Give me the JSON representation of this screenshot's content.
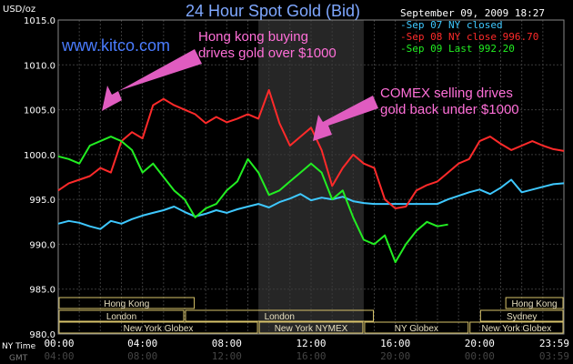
{
  "header": {
    "title": "24 Hour Spot Gold (Bid)",
    "timestamp": "September 09, 2009 18:27",
    "site": "www.kitco.com"
  },
  "legend": [
    {
      "label": "-Sep 07 NY closed",
      "color": "#3ec8ff"
    },
    {
      "label": "-Sep 08 NY close 996.70",
      "color": "#ff2a2a"
    },
    {
      "label": "-Sep 09 Last 992.20",
      "color": "#22ee22"
    }
  ],
  "annotations": [
    {
      "lines": [
        "Hong kong buying",
        "drives gold over $1000"
      ]
    },
    {
      "lines": [
        "COMEX selling drives",
        "gold back under $1000"
      ]
    }
  ],
  "axes": {
    "y_unit": "USD/oz",
    "x_row_labels": [
      "NY Time",
      "GMT"
    ],
    "ny_ticks": [
      "00:00",
      "04:00",
      "08:00",
      "12:00",
      "16:00",
      "20:00",
      "23:59"
    ],
    "gmt_ticks": [
      "04:00",
      "08:00",
      "12:00",
      "16:00",
      "20:00",
      "00:00",
      "03:59"
    ]
  },
  "sessions": [
    {
      "label": "Hong Kong",
      "start": 0.0,
      "end": 6.5,
      "row": 0
    },
    {
      "label": "Hong Kong",
      "start": 21.2,
      "end": 24.0,
      "row": 0
    },
    {
      "label": "London",
      "start": 0.0,
      "end": 6.0,
      "row": 1
    },
    {
      "label": "London",
      "start": 6.0,
      "end": 15.0,
      "row": 1
    },
    {
      "label": "Sydney",
      "start": 20.0,
      "end": 24.0,
      "row": 1
    },
    {
      "label": "New York Globex",
      "start": 0.0,
      "end": 9.5,
      "row": 2
    },
    {
      "label": "New York NYMEX",
      "start": 9.5,
      "end": 14.5,
      "row": 2
    },
    {
      "label": "NY Globex",
      "start": 14.5,
      "end": 19.5,
      "row": 2
    },
    {
      "label": "New York Globex",
      "start": 19.5,
      "end": 24.0,
      "row": 2
    }
  ],
  "chart_data": {
    "type": "line",
    "title": "24 Hour Spot Gold (Bid)",
    "xlabel": "NY Time",
    "ylabel": "USD/oz",
    "xlim": [
      0,
      24
    ],
    "ylim": [
      980,
      1015
    ],
    "yticks": [
      980.0,
      985.0,
      990.0,
      995.0,
      1000.0,
      1005.0,
      1010.0,
      1015.0
    ],
    "grid": true,
    "legend_position": "top-right",
    "shaded_region": [
      9.5,
      14.5
    ],
    "series": [
      {
        "name": "Sep 07 NY closed",
        "color": "#3ec8ff",
        "x": [
          0,
          0.5,
          1.0,
          1.5,
          2.0,
          2.5,
          3.0,
          3.5,
          4.0,
          4.5,
          5.0,
          5.5,
          6.0,
          6.5,
          7.0,
          7.5,
          8.0,
          8.5,
          9.0,
          9.5,
          10.0,
          10.5,
          11.0,
          11.5,
          12.0,
          12.5,
          13.0,
          13.5,
          14.0,
          14.5,
          15.0,
          15.5,
          16.0,
          16.5,
          17.0,
          17.5,
          18.0,
          18.5,
          19.0,
          19.5,
          20.0,
          20.5,
          21.0,
          21.5,
          22.0,
          22.5,
          23.0,
          23.5,
          24.0
        ],
        "values": [
          992.3,
          992.6,
          992.4,
          992.0,
          991.7,
          992.6,
          992.3,
          992.8,
          993.2,
          993.5,
          993.8,
          994.2,
          993.6,
          993.1,
          993.4,
          993.8,
          993.5,
          993.9,
          994.2,
          994.5,
          994.1,
          994.7,
          995.1,
          995.6,
          994.9,
          995.2,
          995.0,
          995.3,
          994.8,
          994.6,
          994.5,
          994.5,
          994.5,
          994.5,
          994.5,
          994.5,
          994.5,
          995.0,
          995.4,
          995.8,
          996.1,
          995.6,
          996.3,
          997.2,
          995.8,
          996.1,
          996.4,
          996.7,
          996.8
        ]
      },
      {
        "name": "Sep 08 NY close 996.70",
        "color": "#ff2a2a",
        "x": [
          0,
          0.5,
          1.0,
          1.5,
          2.0,
          2.5,
          3.0,
          3.5,
          4.0,
          4.5,
          5.0,
          5.5,
          6.0,
          6.5,
          7.0,
          7.5,
          8.0,
          8.5,
          9.0,
          9.5,
          10.0,
          10.5,
          11.0,
          11.5,
          12.0,
          12.5,
          13.0,
          13.5,
          14.0,
          14.5,
          15.0,
          15.5,
          16.0,
          16.5,
          17.0,
          17.5,
          18.0,
          18.5,
          19.0,
          19.5,
          20.0,
          20.5,
          21.0,
          21.5,
          22.0,
          22.5,
          23.0,
          23.5,
          24.0
        ],
        "values": [
          996.0,
          996.8,
          997.2,
          997.6,
          998.5,
          998.0,
          1001.5,
          1002.5,
          1001.8,
          1005.5,
          1006.2,
          1005.5,
          1005.0,
          1004.5,
          1003.5,
          1004.2,
          1003.6,
          1004.0,
          1004.5,
          1004.0,
          1007.2,
          1003.5,
          1001.0,
          1002.0,
          1003.0,
          1000.5,
          996.5,
          998.5,
          1000.0,
          999.0,
          998.5,
          995.0,
          994.0,
          994.2,
          996.0,
          996.6,
          997.0,
          998.0,
          999.0,
          999.5,
          1001.5,
          1002.0,
          1001.2,
          1000.5,
          1001.0,
          1001.5,
          1001.0,
          1000.6,
          1000.4
        ]
      },
      {
        "name": "Sep 09 Last 992.20",
        "color": "#22ee22",
        "x": [
          0,
          0.5,
          1.0,
          1.5,
          2.0,
          2.5,
          3.0,
          3.5,
          4.0,
          4.5,
          5.0,
          5.5,
          6.0,
          6.5,
          7.0,
          7.5,
          8.0,
          8.5,
          9.0,
          9.5,
          10.0,
          10.5,
          11.0,
          11.5,
          12.0,
          12.5,
          13.0,
          13.5,
          14.0,
          14.5,
          15.0,
          15.5,
          16.0,
          16.5,
          17.0,
          17.5,
          18.0,
          18.5
        ],
        "values": [
          999.8,
          999.5,
          999.0,
          1001.0,
          1001.5,
          1002.0,
          1001.5,
          1000.5,
          998.0,
          999.0,
          997.5,
          996.0,
          995.0,
          993.0,
          994.0,
          994.5,
          996.0,
          997.0,
          999.5,
          998.0,
          995.5,
          996.0,
          997.0,
          998.0,
          999.0,
          998.0,
          995.0,
          996.0,
          993.0,
          990.5,
          990.0,
          991.0,
          988.0,
          990.0,
          991.5,
          992.5,
          992.0,
          992.2
        ]
      }
    ]
  }
}
